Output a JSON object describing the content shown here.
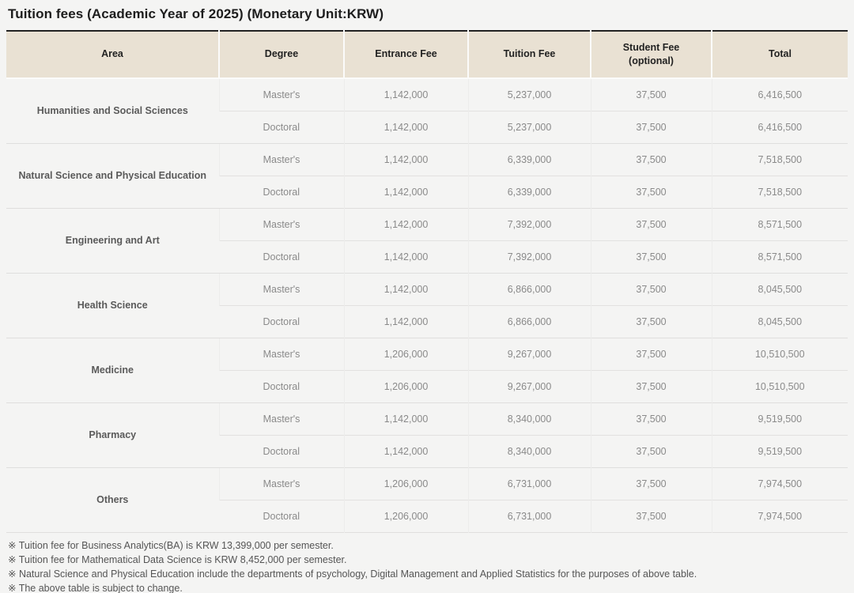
{
  "title": "Tuition fees (Academic Year of 2025) (Monetary Unit:KRW)",
  "colors": {
    "header_background": "#e9e1d3",
    "table_top_border": "#222222",
    "page_background": "#f4f4f3"
  },
  "table": {
    "columns": [
      {
        "label": "Area"
      },
      {
        "label": "Degree"
      },
      {
        "label": "Entrance Fee"
      },
      {
        "label": "Tuition Fee"
      },
      {
        "label": "Student Fee",
        "sublabel": "(optional)"
      },
      {
        "label": "Total"
      }
    ],
    "groups": [
      {
        "area": "Humanities and Social Sciences",
        "rows": [
          {
            "degree": "Master's",
            "entrance": "1,142,000",
            "tuition": "5,237,000",
            "student": "37,500",
            "total": "6,416,500"
          },
          {
            "degree": "Doctoral",
            "entrance": "1,142,000",
            "tuition": "5,237,000",
            "student": "37,500",
            "total": "6,416,500"
          }
        ]
      },
      {
        "area": "Natural Science and Physical Education",
        "rows": [
          {
            "degree": "Master's",
            "entrance": "1,142,000",
            "tuition": "6,339,000",
            "student": "37,500",
            "total": "7,518,500"
          },
          {
            "degree": "Doctoral",
            "entrance": "1,142,000",
            "tuition": "6,339,000",
            "student": "37,500",
            "total": "7,518,500"
          }
        ]
      },
      {
        "area": "Engineering and Art",
        "rows": [
          {
            "degree": "Master's",
            "entrance": "1,142,000",
            "tuition": "7,392,000",
            "student": "37,500",
            "total": "8,571,500"
          },
          {
            "degree": "Doctoral",
            "entrance": "1,142,000",
            "tuition": "7,392,000",
            "student": "37,500",
            "total": "8,571,500"
          }
        ]
      },
      {
        "area": "Health Science",
        "rows": [
          {
            "degree": "Master's",
            "entrance": "1,142,000",
            "tuition": "6,866,000",
            "student": "37,500",
            "total": "8,045,500"
          },
          {
            "degree": "Doctoral",
            "entrance": "1,142,000",
            "tuition": "6,866,000",
            "student": "37,500",
            "total": "8,045,500"
          }
        ]
      },
      {
        "area": "Medicine",
        "rows": [
          {
            "degree": "Master's",
            "entrance": "1,206,000",
            "tuition": "9,267,000",
            "student": "37,500",
            "total": "10,510,500"
          },
          {
            "degree": "Doctoral",
            "entrance": "1,206,000",
            "tuition": "9,267,000",
            "student": "37,500",
            "total": "10,510,500"
          }
        ]
      },
      {
        "area": "Pharmacy",
        "rows": [
          {
            "degree": "Master's",
            "entrance": "1,142,000",
            "tuition": "8,340,000",
            "student": "37,500",
            "total": "9,519,500"
          },
          {
            "degree": "Doctoral",
            "entrance": "1,142,000",
            "tuition": "8,340,000",
            "student": "37,500",
            "total": "9,519,500"
          }
        ]
      },
      {
        "area": "Others",
        "rows": [
          {
            "degree": "Master's",
            "entrance": "1,206,000",
            "tuition": "6,731,000",
            "student": "37,500",
            "total": "7,974,500"
          },
          {
            "degree": "Doctoral",
            "entrance": "1,206,000",
            "tuition": "6,731,000",
            "student": "37,500",
            "total": "7,974,500"
          }
        ]
      }
    ]
  },
  "notes": [
    "※ Tuition fee for Business Analytics(BA) is KRW 13,399,000 per semester.",
    "※ Tuition fee for Mathematical Data Science is KRW 8,452,000 per semester.",
    "※ Natural Science and Physical Education include the departments of psychology, Digital Management and Applied Statistics for the purposes of above table.",
    "※ The above table is subject to change."
  ]
}
